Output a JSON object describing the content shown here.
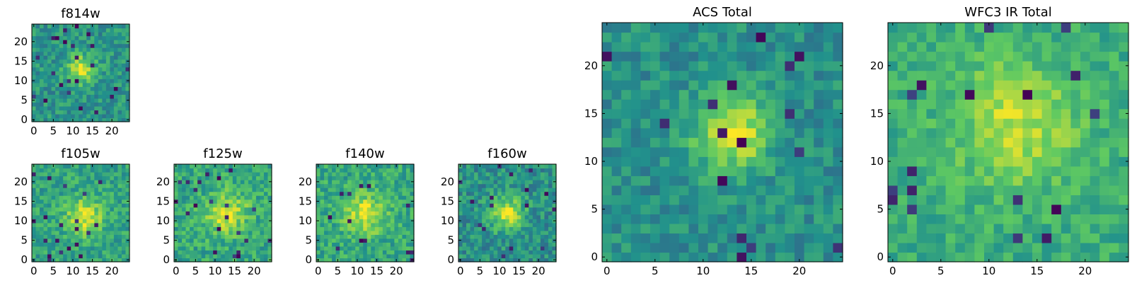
{
  "chart_data": [
    {
      "id": "f814w",
      "type": "heatmap",
      "title": "f814w",
      "grid_size": 25,
      "cmap": "viridis",
      "xticks": [
        "0",
        "5",
        "10",
        "15",
        "20"
      ],
      "yticks": [
        "0",
        "5",
        "10",
        "15",
        "20"
      ],
      "xlim": [
        -0.5,
        24.5
      ],
      "ylim": [
        -0.5,
        24.5
      ],
      "source": {
        "center": [
          12,
          13
        ],
        "sigma": 2.6,
        "peak": 0.95,
        "background": 0.52,
        "noise": 0.28,
        "seed": 11
      }
    },
    {
      "id": "f105w",
      "type": "heatmap",
      "title": "f105w",
      "grid_size": 25,
      "cmap": "viridis",
      "xticks": [
        "0",
        "5",
        "10",
        "15",
        "20"
      ],
      "yticks": [
        "0",
        "5",
        "10",
        "15",
        "20"
      ],
      "xlim": [
        -0.5,
        24.5
      ],
      "ylim": [
        -0.5,
        24.5
      ],
      "source": {
        "center": [
          13,
          11
        ],
        "sigma": 3.3,
        "peak": 0.95,
        "background": 0.58,
        "noise": 0.28,
        "seed": 23
      }
    },
    {
      "id": "f125w",
      "type": "heatmap",
      "title": "f125w",
      "grid_size": 25,
      "cmap": "viridis",
      "xticks": [
        "0",
        "5",
        "10",
        "15",
        "20"
      ],
      "yticks": [
        "0",
        "5",
        "10",
        "15",
        "20"
      ],
      "xlim": [
        -0.5,
        24.5
      ],
      "ylim": [
        -0.5,
        24.5
      ],
      "source": {
        "center": [
          13,
          12
        ],
        "sigma": 3.6,
        "peak": 0.95,
        "background": 0.6,
        "noise": 0.3,
        "seed": 37
      }
    },
    {
      "id": "f140w",
      "type": "heatmap",
      "title": "f140w",
      "grid_size": 25,
      "cmap": "viridis",
      "xticks": [
        "0",
        "5",
        "10",
        "15",
        "20"
      ],
      "yticks": [
        "0",
        "5",
        "10",
        "15",
        "20"
      ],
      "xlim": [
        -0.5,
        24.5
      ],
      "ylim": [
        -0.5,
        24.5
      ],
      "source": {
        "center": [
          12,
          12
        ],
        "sigma": 3.6,
        "peak": 0.95,
        "background": 0.6,
        "noise": 0.3,
        "seed": 41
      }
    },
    {
      "id": "f160w",
      "type": "heatmap",
      "title": "f160w",
      "grid_size": 25,
      "cmap": "viridis",
      "xticks": [
        "0",
        "5",
        "10",
        "15",
        "20"
      ],
      "yticks": [
        "0",
        "5",
        "10",
        "15",
        "20"
      ],
      "xlim": [
        -0.5,
        24.5
      ],
      "ylim": [
        -0.5,
        24.5
      ],
      "source": {
        "center": [
          12,
          12
        ],
        "sigma": 3.0,
        "peak": 0.95,
        "background": 0.5,
        "noise": 0.3,
        "seed": 53
      }
    },
    {
      "id": "acs_total",
      "type": "heatmap",
      "title": "ACS Total",
      "grid_size": 25,
      "cmap": "viridis",
      "xticks": [
        "0",
        "5",
        "10",
        "15",
        "20"
      ],
      "yticks": [
        "0",
        "5",
        "10",
        "15",
        "20"
      ],
      "xlim": [
        -0.5,
        24.5
      ],
      "ylim": [
        -0.5,
        24.5
      ],
      "source": {
        "center": [
          13,
          13
        ],
        "sigma": 2.8,
        "peak": 0.97,
        "background": 0.5,
        "noise": 0.24,
        "seed": 67
      }
    },
    {
      "id": "wfc3_ir_total",
      "type": "heatmap",
      "title": "WFC3 IR Total",
      "grid_size": 25,
      "cmap": "viridis",
      "xticks": [
        "0",
        "5",
        "10",
        "15",
        "20"
      ],
      "yticks": [
        "0",
        "5",
        "10",
        "15",
        "20"
      ],
      "xlim": [
        -0.5,
        24.5
      ],
      "ylim": [
        -0.5,
        24.5
      ],
      "source": {
        "center": [
          13,
          14
        ],
        "sigma": 4.5,
        "peak": 0.9,
        "background": 0.62,
        "noise": 0.22,
        "seed": 79
      }
    }
  ],
  "colors": {
    "viridis": [
      "#440154",
      "#3b528b",
      "#21918c",
      "#5ec962",
      "#fde725"
    ],
    "frame": "#000000",
    "background": "#ffffff"
  }
}
